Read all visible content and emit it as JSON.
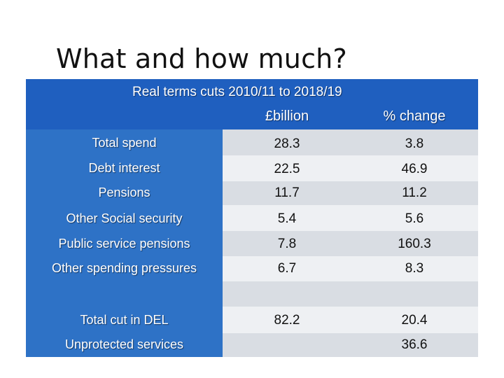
{
  "slide": {
    "title": "What and how much?"
  },
  "table": {
    "title": "Real terms cuts 2010/11 to 2018/19",
    "columns": [
      "£billion",
      "% change"
    ],
    "rows": [
      {
        "label": "Total spend",
        "billion": "28.3",
        "pct": "3.8"
      },
      {
        "label": "Debt interest",
        "billion": "22.5",
        "pct": "46.9"
      },
      {
        "label": "Pensions",
        "billion": "11.7",
        "pct": "11.2"
      },
      {
        "label": "Other Social security",
        "billion": "5.4",
        "pct": "5.6"
      },
      {
        "label": "Public service pensions",
        "billion": "7.8",
        "pct": "160.3"
      },
      {
        "label": "Other spending pressures",
        "billion": "6.7",
        "pct": "8.3"
      },
      {
        "label": "",
        "billion": "",
        "pct": ""
      },
      {
        "label": "Total cut in DEL",
        "billion": "82.2",
        "pct": "20.4"
      },
      {
        "label": "Unprotected services",
        "billion": "",
        "pct": "36.6"
      }
    ]
  },
  "colors": {
    "header_bg": "#1f5fbf",
    "label_col_bg": "#2e72c6",
    "band_dark": "#d9dde3",
    "band_light": "#eef0f3"
  }
}
